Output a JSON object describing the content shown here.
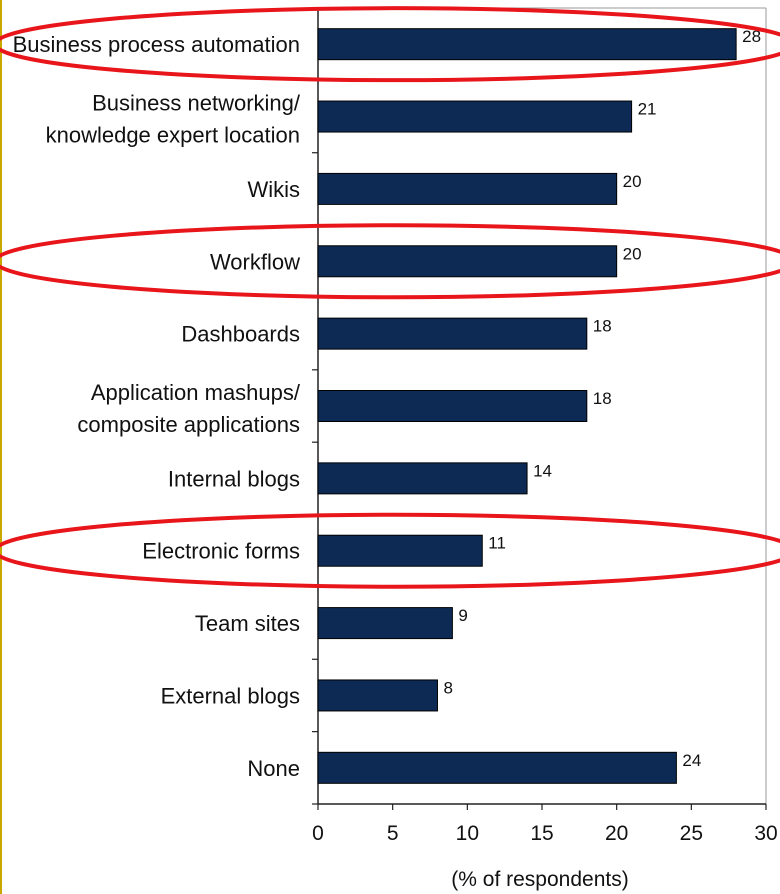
{
  "chart_data": {
    "type": "bar",
    "orientation": "horizontal",
    "categories": [
      [
        "Business process automation"
      ],
      [
        "Business networking/",
        "knowledge expert location"
      ],
      [
        "Wikis"
      ],
      [
        "Workflow"
      ],
      [
        "Dashboards"
      ],
      [
        "Application mashups/",
        "composite applications"
      ],
      [
        "Internal blogs"
      ],
      [
        "Electronic forms"
      ],
      [
        "Team sites"
      ],
      [
        "External blogs"
      ],
      [
        "None"
      ]
    ],
    "values": [
      28,
      21,
      20,
      20,
      18,
      18,
      14,
      11,
      9,
      8,
      24
    ],
    "value_labels": [
      "28",
      "21",
      "20",
      "20",
      "18",
      "18",
      "14",
      "11",
      "9",
      "8",
      "24"
    ],
    "xlabel": "(% of respondents)",
    "xlim": [
      0,
      30
    ],
    "xticks": [
      0,
      5,
      10,
      15,
      20,
      25,
      30
    ],
    "xtick_labels": [
      "0",
      "5",
      "10",
      "15",
      "20",
      "25",
      "30"
    ],
    "highlighted_categories": [
      0,
      3,
      7
    ],
    "grid": false,
    "colors": {
      "bar": "#0d2a55",
      "highlight": "#e8161b",
      "frame": "#999999",
      "left_rule": "#c8a800"
    }
  }
}
